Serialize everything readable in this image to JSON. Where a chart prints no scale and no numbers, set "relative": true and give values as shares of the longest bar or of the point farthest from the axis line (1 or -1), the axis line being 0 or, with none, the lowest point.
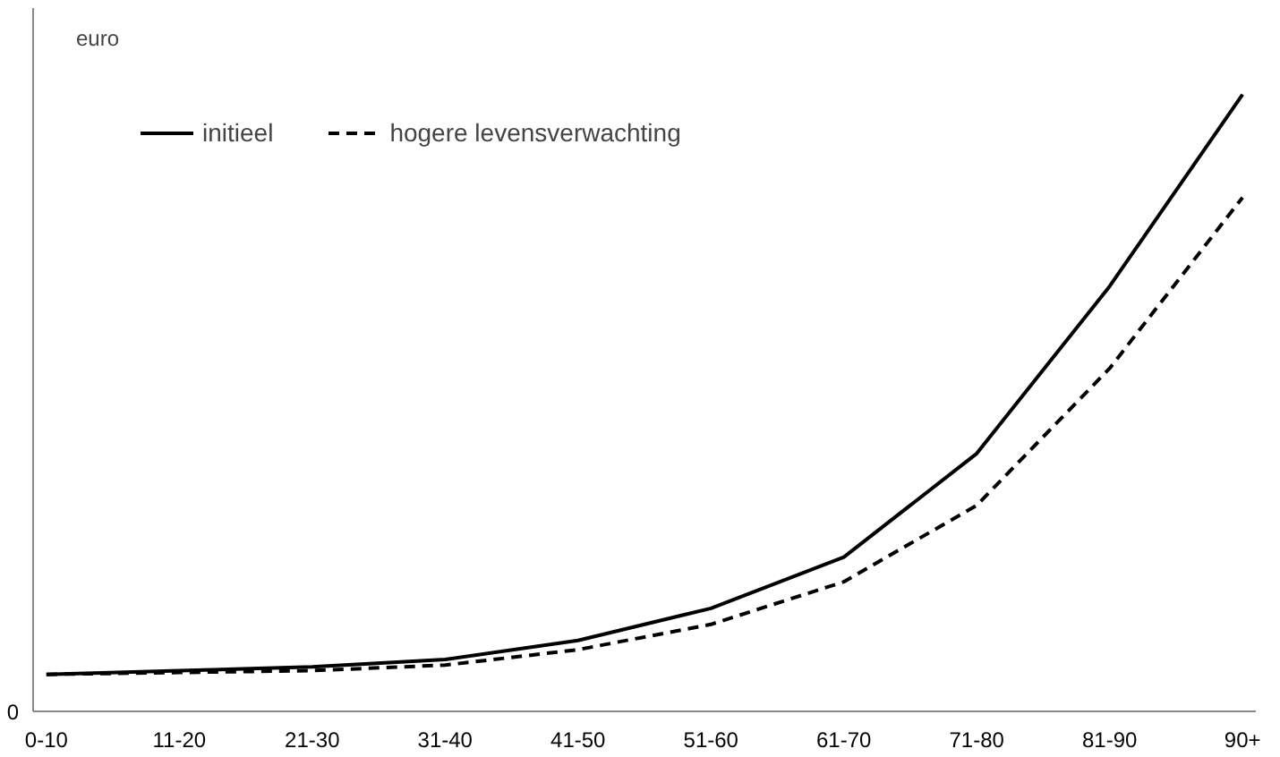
{
  "chart_data": {
    "type": "line",
    "relative": true,
    "ylabel": "euro",
    "annotations": [
      "0"
    ],
    "categories": [
      "0-10",
      "11-20",
      "21-30",
      "31-40",
      "41-50",
      "51-60",
      "61-70",
      "71-80",
      "81-90",
      "90+"
    ],
    "series": [
      {
        "name": "initieel",
        "color": "#000000",
        "line_style": "solid",
        "values": [
          0.06,
          0.066,
          0.072,
          0.084,
          0.115,
          0.167,
          0.25,
          0.418,
          0.689,
          1
        ]
      },
      {
        "name": "hogere levensverwachting",
        "color": "#000000",
        "line_style": "dashed",
        "values": [
          0.06,
          0.063,
          0.066,
          0.075,
          0.1,
          0.141,
          0.21,
          0.334,
          0.556,
          0.833
        ]
      }
    ],
    "legend": "top left",
    "grid": false,
    "marker": "none"
  }
}
